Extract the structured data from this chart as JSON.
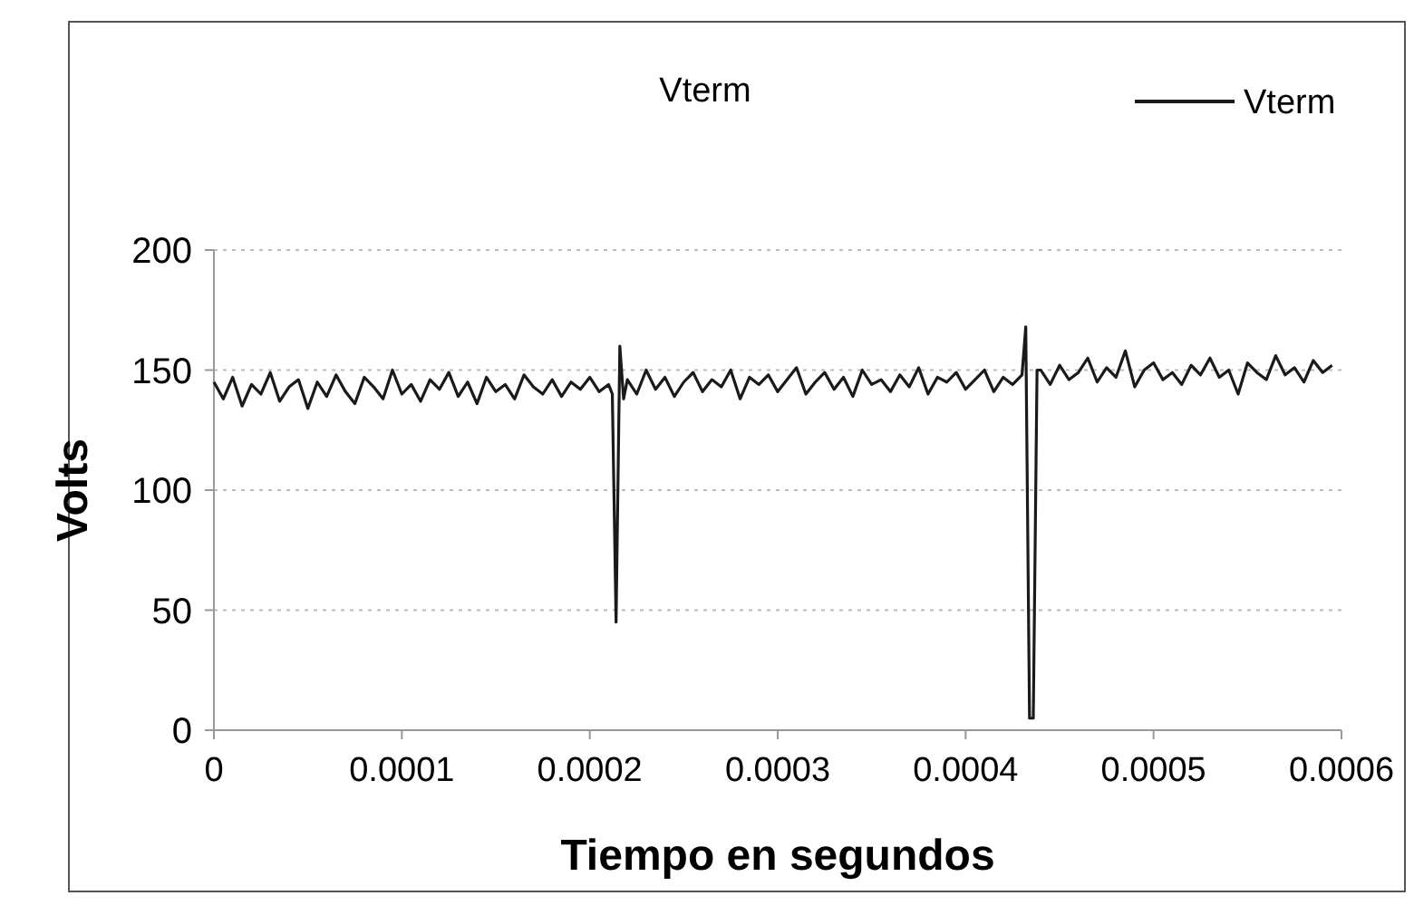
{
  "chart_data": {
    "type": "line",
    "title": "Vterm",
    "xlabel": "Tiempo en segundos",
    "ylabel": "Volts",
    "x": [
      0,
      5e-06,
      1e-05,
      1.5e-05,
      2e-05,
      2.5e-05,
      3e-05,
      3.5e-05,
      4e-05,
      4.5e-05,
      5e-05,
      5.5e-05,
      6e-05,
      6.5e-05,
      7e-05,
      7.5e-05,
      8e-05,
      8.5e-05,
      9e-05,
      9.5e-05,
      0.0001,
      0.000105,
      0.00011,
      0.000115,
      0.00012,
      0.000125,
      0.00013,
      0.000135,
      0.00014,
      0.000145,
      0.00015,
      0.000155,
      0.00016,
      0.000165,
      0.00017,
      0.000175,
      0.00018,
      0.000185,
      0.00019,
      0.000195,
      0.0002,
      0.000205,
      0.00021,
      0.000212,
      0.000214,
      0.000216,
      0.000218,
      0.00022,
      0.000225,
      0.00023,
      0.000235,
      0.00024,
      0.000245,
      0.00025,
      0.000255,
      0.00026,
      0.000265,
      0.00027,
      0.000275,
      0.00028,
      0.000285,
      0.00029,
      0.000295,
      0.0003,
      0.000305,
      0.00031,
      0.000315,
      0.00032,
      0.000325,
      0.00033,
      0.000335,
      0.00034,
      0.000345,
      0.00035,
      0.000355,
      0.00036,
      0.000365,
      0.00037,
      0.000375,
      0.00038,
      0.000385,
      0.00039,
      0.000395,
      0.0004,
      0.000405,
      0.00041,
      0.000415,
      0.00042,
      0.000425,
      0.00043,
      0.000432,
      0.000434,
      0.000436,
      0.000438,
      0.00044,
      0.000445,
      0.00045,
      0.000455,
      0.00046,
      0.000465,
      0.00047,
      0.000475,
      0.00048,
      0.000485,
      0.00049,
      0.000495,
      0.0005,
      0.000505,
      0.00051,
      0.000515,
      0.00052,
      0.000525,
      0.00053,
      0.000535,
      0.00054,
      0.000545,
      0.00055,
      0.000555,
      0.00056,
      0.000565,
      0.00057,
      0.000575,
      0.00058,
      0.000585,
      0.00059,
      0.000595
    ],
    "series": [
      {
        "name": "Vterm",
        "color": "#1a1a1a",
        "values": [
          145,
          138,
          147,
          135,
          144,
          140,
          149,
          137,
          143,
          146,
          134,
          145,
          139,
          148,
          141,
          136,
          147,
          143,
          138,
          150,
          140,
          144,
          137,
          146,
          142,
          149,
          139,
          145,
          136,
          147,
          141,
          144,
          138,
          148,
          143,
          140,
          146,
          139,
          145,
          142,
          147,
          141,
          144,
          140,
          45,
          160,
          138,
          146,
          140,
          150,
          142,
          147,
          139,
          145,
          149,
          141,
          146,
          143,
          150,
          138,
          147,
          144,
          148,
          141,
          146,
          151,
          140,
          145,
          149,
          142,
          147,
          139,
          150,
          144,
          146,
          141,
          148,
          143,
          151,
          140,
          147,
          145,
          149,
          142,
          146,
          150,
          141,
          147,
          144,
          148,
          168,
          5,
          5,
          150,
          150,
          144,
          152,
          146,
          149,
          155,
          145,
          151,
          147,
          158,
          143,
          150,
          153,
          146,
          149,
          144,
          152,
          148,
          155,
          147,
          150,
          140,
          153,
          149,
          146,
          156,
          148,
          151,
          145,
          154,
          149,
          152
        ]
      }
    ],
    "xlim": [
      0,
      0.0006
    ],
    "xticks": [
      0,
      0.0001,
      0.0002,
      0.0003,
      0.0004,
      0.0005,
      0.0006
    ],
    "ylim": [
      0,
      200
    ],
    "yticks": [
      0,
      50,
      100,
      150,
      200
    ],
    "grid": "y",
    "legend": "top right",
    "line_style": "solid"
  }
}
